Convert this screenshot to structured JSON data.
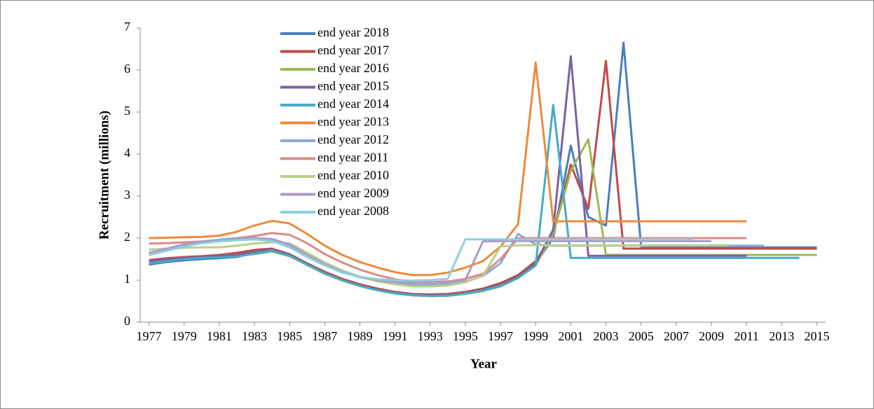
{
  "chart_data": {
    "type": "line",
    "x_label": "Year",
    "y_label": "Recruitment (millions)",
    "x": [
      1977,
      1978,
      1979,
      1980,
      1981,
      1982,
      1983,
      1984,
      1985,
      1986,
      1987,
      1988,
      1989,
      1990,
      1991,
      1992,
      1993,
      1994,
      1995,
      1996,
      1997,
      1998,
      1999,
      2000,
      2001,
      2002,
      2003,
      2004,
      2005,
      2006,
      2007,
      2008,
      2009,
      2010,
      2011,
      2012,
      2013,
      2014,
      2015
    ],
    "xlim": [
      1976.5,
      2015.5
    ],
    "xticks": [
      1977,
      1979,
      1981,
      1983,
      1985,
      1987,
      1989,
      1991,
      1993,
      1995,
      1997,
      1999,
      2001,
      2003,
      2005,
      2007,
      2009,
      2011,
      2013,
      2015
    ],
    "ylim": [
      0,
      7
    ],
    "yticks": [
      0,
      1,
      2,
      3,
      4,
      5,
      6,
      7
    ],
    "grid": false,
    "legend": "top-left",
    "series": [
      {
        "name": "end year 2018",
        "color": "#4a7ebb",
        "values": [
          1.37,
          1.43,
          1.47,
          1.5,
          1.52,
          1.55,
          1.65,
          1.72,
          1.6,
          1.38,
          1.17,
          1.0,
          0.87,
          0.77,
          0.69,
          0.64,
          0.62,
          0.63,
          0.68,
          0.76,
          0.88,
          1.1,
          1.4,
          2.0,
          4.2,
          2.5,
          2.3,
          6.65,
          1.8,
          1.78,
          1.78,
          1.78,
          1.78,
          1.78,
          1.78,
          1.78,
          1.78,
          1.78,
          1.78
        ]
      },
      {
        "name": "end year 2017",
        "color": "#be4b48",
        "values": [
          1.48,
          1.52,
          1.55,
          1.57,
          1.6,
          1.65,
          1.72,
          1.75,
          1.62,
          1.4,
          1.2,
          1.03,
          0.9,
          0.8,
          0.72,
          0.67,
          0.66,
          0.67,
          0.72,
          0.8,
          0.93,
          1.12,
          1.45,
          2.1,
          3.75,
          2.7,
          6.22,
          1.75,
          1.75,
          1.75,
          1.75,
          1.75,
          1.75,
          1.75,
          1.75,
          1.75,
          1.75,
          1.75,
          1.75
        ]
      },
      {
        "name": "end year 2016",
        "color": "#98b954",
        "values": [
          1.42,
          1.47,
          1.52,
          1.55,
          1.56,
          1.58,
          1.62,
          1.68,
          1.57,
          1.36,
          1.15,
          0.99,
          0.86,
          0.76,
          0.68,
          0.64,
          0.62,
          0.63,
          0.67,
          0.74,
          0.85,
          1.05,
          1.35,
          2.1,
          3.6,
          4.35,
          1.6,
          1.6,
          1.6,
          1.6,
          1.6,
          1.6,
          1.6,
          1.6,
          1.6,
          1.6,
          1.6,
          1.6,
          1.6
        ]
      },
      {
        "name": "end year 2015",
        "color": "#7d60a0",
        "values": [
          1.45,
          1.5,
          1.53,
          1.55,
          1.57,
          1.6,
          1.68,
          1.73,
          1.6,
          1.38,
          1.17,
          1.0,
          0.87,
          0.77,
          0.7,
          0.65,
          0.64,
          0.64,
          0.69,
          0.77,
          0.88,
          1.07,
          1.4,
          2.2,
          6.33,
          1.58,
          1.58,
          1.58,
          1.58,
          1.58,
          1.58,
          1.58,
          1.58,
          1.58,
          1.58,
          null,
          null,
          null,
          null
        ]
      },
      {
        "name": "end year 2014",
        "color": "#46aac5",
        "values": [
          1.4,
          1.45,
          1.5,
          1.53,
          1.54,
          1.56,
          1.63,
          1.7,
          1.58,
          1.37,
          1.16,
          1.0,
          0.86,
          0.76,
          0.69,
          0.64,
          0.62,
          0.63,
          0.68,
          0.75,
          0.86,
          1.05,
          1.35,
          5.17,
          1.53,
          1.53,
          1.53,
          1.53,
          1.53,
          1.53,
          1.53,
          1.53,
          1.53,
          1.53,
          1.53,
          1.53,
          1.53,
          1.53,
          null
        ]
      },
      {
        "name": "end year 2013",
        "color": "#ec8a3c",
        "values": [
          2.0,
          2.01,
          2.02,
          2.03,
          2.06,
          2.15,
          2.3,
          2.41,
          2.35,
          2.1,
          1.82,
          1.6,
          1.43,
          1.3,
          1.19,
          1.12,
          1.12,
          1.18,
          1.3,
          1.45,
          1.8,
          2.33,
          6.18,
          2.4,
          2.4,
          2.4,
          2.4,
          2.4,
          2.4,
          2.4,
          2.4,
          2.4,
          2.4,
          2.4,
          2.4,
          null,
          null,
          null,
          null
        ]
      },
      {
        "name": "end year 2012",
        "color": "#8fa9d4",
        "values": [
          1.62,
          1.72,
          1.82,
          1.9,
          1.95,
          1.98,
          2.0,
          1.95,
          1.8,
          1.58,
          1.38,
          1.2,
          1.07,
          0.98,
          0.92,
          0.88,
          0.88,
          0.9,
          0.96,
          1.1,
          1.4,
          2.1,
          1.85,
          1.82,
          1.82,
          1.82,
          1.82,
          1.82,
          1.82,
          1.82,
          1.82,
          1.82,
          1.82,
          1.82,
          1.82,
          1.82,
          null,
          null,
          null
        ]
      },
      {
        "name": "end year 2011",
        "color": "#dc8a87",
        "values": [
          1.87,
          1.88,
          1.9,
          1.92,
          1.95,
          2.0,
          2.05,
          2.12,
          2.08,
          1.88,
          1.62,
          1.42,
          1.25,
          1.12,
          1.02,
          0.96,
          0.95,
          0.97,
          1.03,
          1.15,
          1.5,
          2.0,
          2.0,
          2.0,
          2.0,
          2.0,
          2.0,
          2.0,
          2.0,
          2.0,
          2.0,
          2.0,
          2.0,
          2.0,
          2.0,
          null,
          null,
          null,
          null
        ]
      },
      {
        "name": "end year 2010",
        "color": "#b9d08e",
        "values": [
          1.73,
          1.75,
          1.77,
          1.78,
          1.78,
          1.82,
          1.87,
          1.9,
          1.88,
          1.65,
          1.42,
          1.23,
          1.08,
          0.97,
          0.9,
          0.85,
          0.85,
          0.87,
          0.95,
          1.1,
          1.8,
          1.83,
          1.83,
          1.83,
          1.83,
          1.83,
          1.83,
          1.83,
          1.83,
          1.83,
          1.83,
          1.83,
          1.83,
          1.83,
          null,
          null,
          null,
          null,
          null
        ]
      },
      {
        "name": "end year 2009",
        "color": "#ab9bc6",
        "values": [
          1.65,
          1.75,
          1.85,
          1.92,
          1.96,
          2.0,
          2.0,
          1.98,
          1.85,
          1.6,
          1.38,
          1.2,
          1.08,
          1.0,
          0.95,
          0.93,
          0.93,
          0.95,
          1.0,
          1.92,
          1.93,
          1.93,
          1.93,
          1.93,
          1.93,
          1.93,
          1.93,
          1.93,
          1.93,
          1.93,
          1.93,
          1.93,
          1.93,
          null,
          null,
          null,
          null,
          null,
          null
        ]
      },
      {
        "name": "end year 2008",
        "color": "#8ccfe0",
        "values": [
          1.6,
          1.7,
          1.8,
          1.88,
          1.92,
          1.95,
          1.97,
          1.93,
          1.78,
          1.55,
          1.35,
          1.18,
          1.08,
          1.02,
          1.0,
          0.99,
          1.0,
          1.03,
          1.97,
          1.97,
          1.97,
          1.97,
          1.97,
          1.97,
          1.97,
          1.97,
          1.97,
          1.97,
          1.97,
          1.97,
          1.97,
          1.97,
          null,
          null,
          null,
          null,
          null,
          null,
          null
        ]
      }
    ]
  }
}
